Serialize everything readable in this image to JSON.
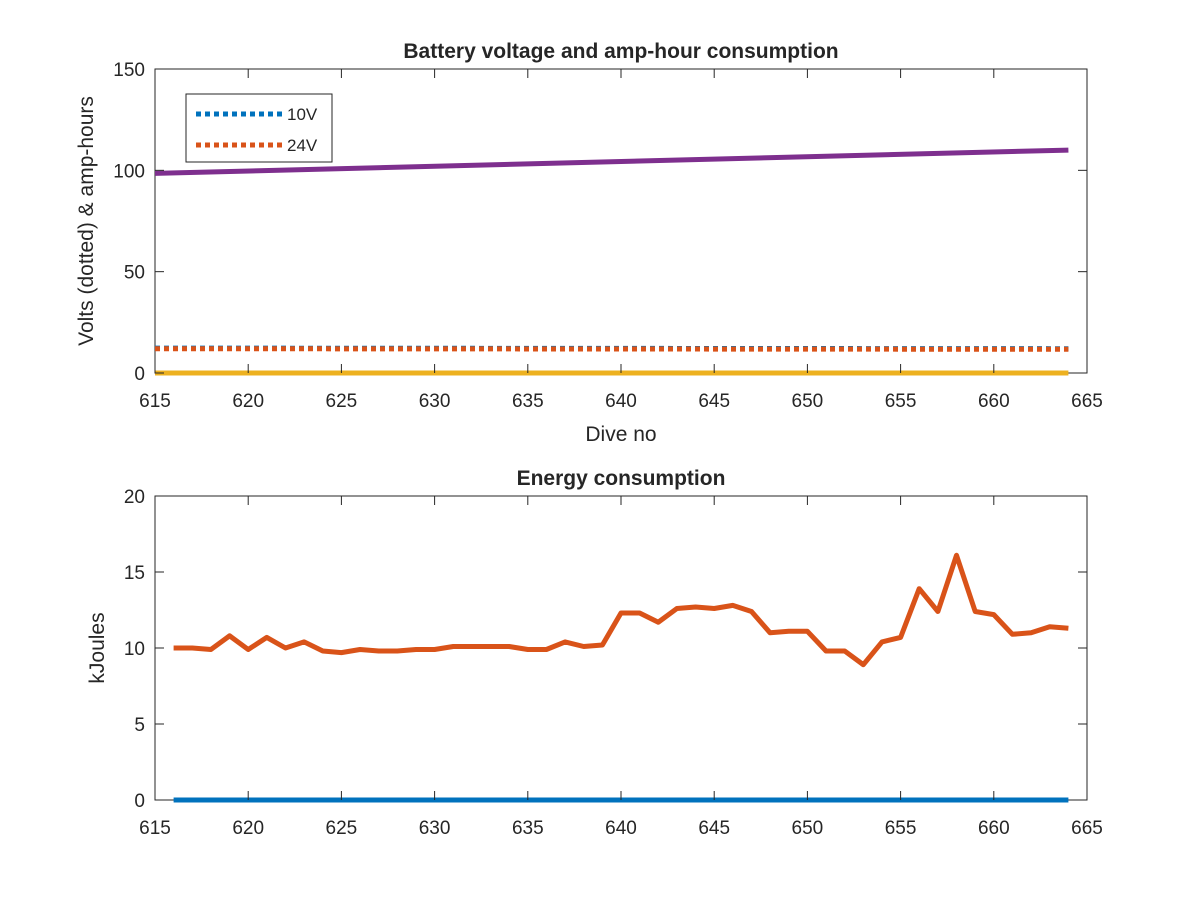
{
  "chart_data": [
    {
      "type": "line",
      "title": "Battery voltage and amp-hour consumption",
      "xlabel": "Dive no",
      "ylabel": "Volts (dotted) & amp-hours",
      "xlim": [
        615,
        665
      ],
      "ylim": [
        0,
        150
      ],
      "xticks": [
        615,
        620,
        625,
        630,
        635,
        640,
        645,
        650,
        655,
        660,
        665
      ],
      "yticks": [
        0,
        50,
        100,
        150
      ],
      "legend_position": "top-left",
      "series": [
        {
          "name": "10V",
          "style": "dotted",
          "color": "#0072BD",
          "x": [
            615,
            664
          ],
          "y": [
            12.3,
            12.0
          ]
        },
        {
          "name": "24V",
          "style": "dotted",
          "color": "#D95319",
          "x": [
            615,
            664
          ],
          "y": [
            12.0,
            11.7
          ]
        },
        {
          "style": "solid",
          "color": "#7E2F8E",
          "x": [
            615,
            664
          ],
          "y": [
            98.5,
            110.0
          ]
        },
        {
          "style": "solid",
          "color": "#EDB120",
          "x": [
            615,
            664
          ],
          "y": [
            0.0,
            0.0
          ]
        }
      ]
    },
    {
      "type": "line",
      "title": "Energy consumption",
      "xlabel": "",
      "ylabel": "kJoules",
      "xlim": [
        615,
        665
      ],
      "ylim": [
        0,
        20
      ],
      "xticks": [
        615,
        620,
        625,
        630,
        635,
        640,
        645,
        650,
        655,
        660,
        665
      ],
      "yticks": [
        0,
        5,
        10,
        15,
        20
      ],
      "series": [
        {
          "style": "solid",
          "color": "#0072BD",
          "x": [
            616,
            664
          ],
          "y": [
            0,
            0
          ]
        },
        {
          "style": "solid",
          "color": "#D95319",
          "x": [
            616,
            617,
            618,
            619,
            620,
            621,
            622,
            623,
            624,
            625,
            626,
            627,
            628,
            629,
            630,
            631,
            632,
            633,
            634,
            635,
            636,
            637,
            638,
            639,
            640,
            641,
            642,
            643,
            644,
            645,
            646,
            647,
            648,
            649,
            650,
            651,
            652,
            653,
            654,
            655,
            656,
            657,
            658,
            659,
            660,
            661,
            662,
            663,
            664
          ],
          "y": [
            10.0,
            10.0,
            9.9,
            10.8,
            9.9,
            10.7,
            10.0,
            10.4,
            9.8,
            9.7,
            9.9,
            9.8,
            9.8,
            9.9,
            9.9,
            10.1,
            10.1,
            10.1,
            10.1,
            9.9,
            9.9,
            10.4,
            10.1,
            10.2,
            12.3,
            12.3,
            11.7,
            12.6,
            12.7,
            12.6,
            12.8,
            12.4,
            11.0,
            11.1,
            11.1,
            9.8,
            9.8,
            8.9,
            10.4,
            10.7,
            13.9,
            12.4,
            16.1,
            12.4,
            12.2,
            10.9,
            11.0,
            11.4,
            11.3
          ]
        }
      ]
    }
  ]
}
